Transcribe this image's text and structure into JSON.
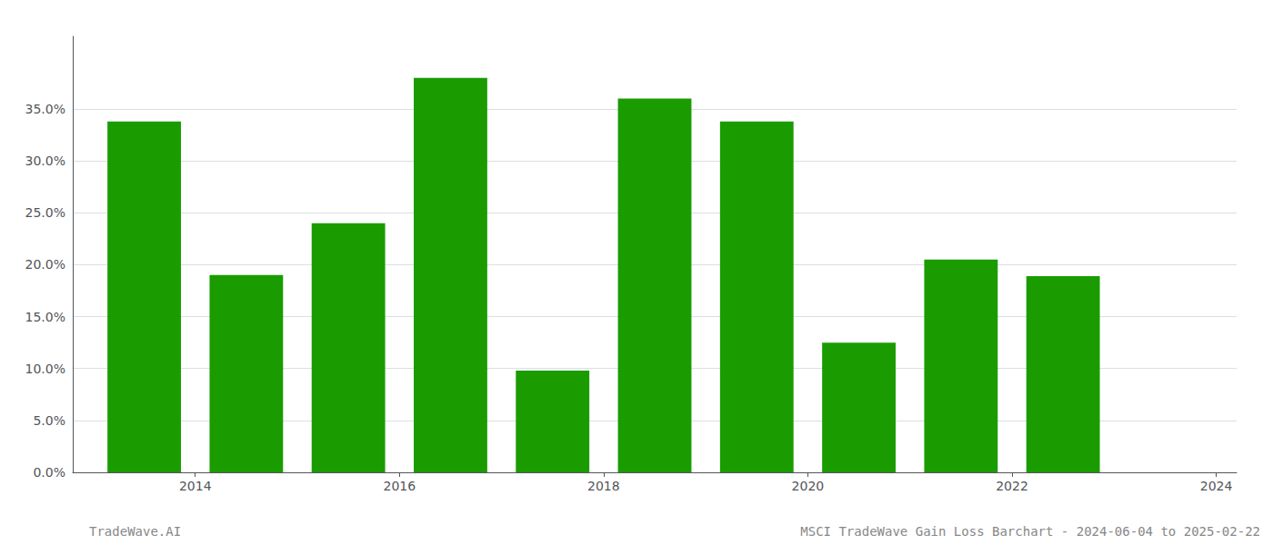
{
  "chart_data": {
    "type": "bar",
    "x": [
      2013.5,
      2014.5,
      2015.5,
      2016.5,
      2017.5,
      2018.5,
      2019.5,
      2020.5,
      2021.5,
      2022.5
    ],
    "values": [
      0.338,
      0.19,
      0.24,
      0.38,
      0.098,
      0.36,
      0.338,
      0.125,
      0.205,
      0.189
    ],
    "color": "#1a9c00",
    "xlim": [
      2012.8,
      2024.2
    ],
    "xticks": [
      2014,
      2016,
      2018,
      2020,
      2022,
      2024
    ],
    "ylim": [
      0.0,
      0.42
    ],
    "yticks": [
      {
        "value": 0.0,
        "label": "0.0%"
      },
      {
        "value": 0.05,
        "label": "5.0%"
      },
      {
        "value": 0.1,
        "label": "10.0%"
      },
      {
        "value": 0.15,
        "label": "15.0%"
      },
      {
        "value": 0.2,
        "label": "20.0%"
      },
      {
        "value": 0.25,
        "label": "25.0%"
      },
      {
        "value": 0.3,
        "label": "30.0%"
      },
      {
        "value": 0.35,
        "label": "35.0%"
      }
    ],
    "grid": true,
    "annotations": [
      "TradeWave.AI",
      "MSCI TradeWave Gain Loss Barchart - 2024-06-04 to 2025-02-22"
    ]
  }
}
